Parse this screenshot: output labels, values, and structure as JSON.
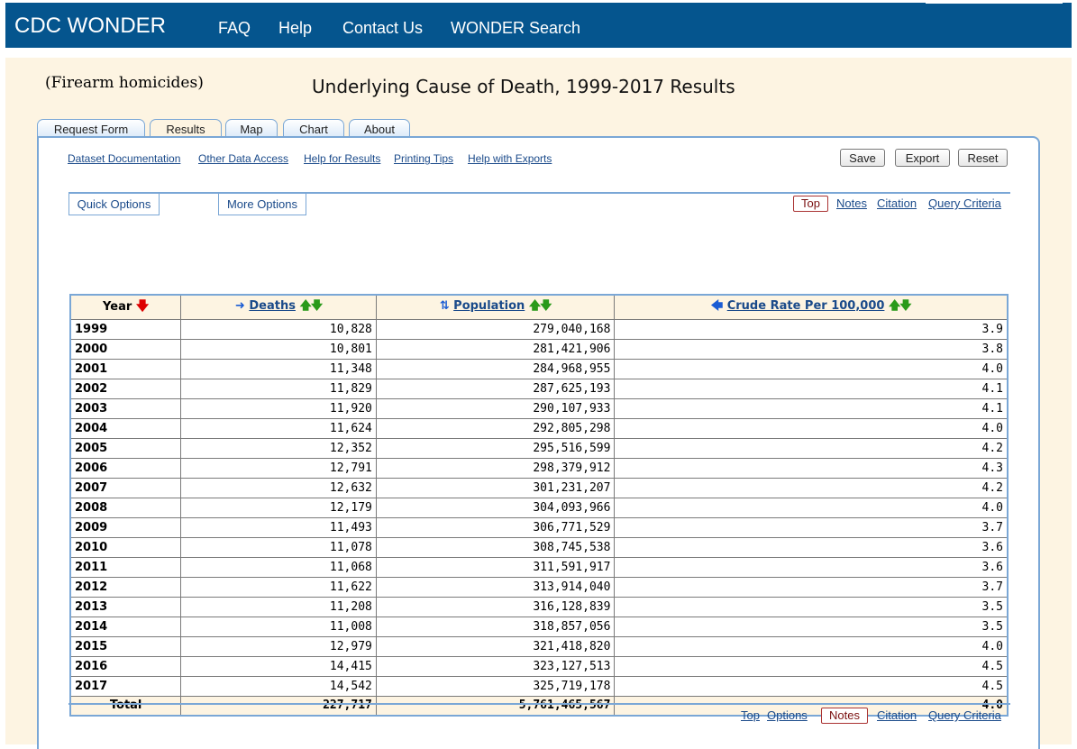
{
  "topnav": {
    "brand": "CDC WONDER",
    "items": [
      "FAQ",
      "Help",
      "Contact Us",
      "WONDER Search"
    ]
  },
  "header": {
    "subtitle": "(Firearm homicides)",
    "title": "Underlying Cause of Death, 1999-2017 Results"
  },
  "tabs": [
    "Request Form",
    "Results",
    "Map",
    "Chart",
    "About"
  ],
  "links": [
    "Dataset Documentation",
    "Other Data Access",
    "Help for Results",
    "Printing Tips",
    "Help with Exports"
  ],
  "buttons": {
    "save": "Save",
    "export": "Export",
    "reset": "Reset"
  },
  "options": {
    "quick": "Quick Options",
    "more": "More Options"
  },
  "toplinks": {
    "top": "Top",
    "notes": "Notes",
    "citation": "Citation",
    "query": "Query Criteria"
  },
  "bottomlinks": {
    "top": "Top",
    "options": "Options",
    "notes": "Notes",
    "citation": "Citation",
    "query": "Query Criteria"
  },
  "table": {
    "headers": {
      "year": "Year",
      "deaths": "Deaths",
      "population": "Population",
      "rate": "Crude Rate Per 100,000"
    },
    "rows": [
      [
        "1999",
        "10,828",
        "279,040,168",
        "3.9"
      ],
      [
        "2000",
        "10,801",
        "281,421,906",
        "3.8"
      ],
      [
        "2001",
        "11,348",
        "284,968,955",
        "4.0"
      ],
      [
        "2002",
        "11,829",
        "287,625,193",
        "4.1"
      ],
      [
        "2003",
        "11,920",
        "290,107,933",
        "4.1"
      ],
      [
        "2004",
        "11,624",
        "292,805,298",
        "4.0"
      ],
      [
        "2005",
        "12,352",
        "295,516,599",
        "4.2"
      ],
      [
        "2006",
        "12,791",
        "298,379,912",
        "4.3"
      ],
      [
        "2007",
        "12,632",
        "301,231,207",
        "4.2"
      ],
      [
        "2008",
        "12,179",
        "304,093,966",
        "4.0"
      ],
      [
        "2009",
        "11,493",
        "306,771,529",
        "3.7"
      ],
      [
        "2010",
        "11,078",
        "308,745,538",
        "3.6"
      ],
      [
        "2011",
        "11,068",
        "311,591,917",
        "3.6"
      ],
      [
        "2012",
        "11,622",
        "313,914,040",
        "3.7"
      ],
      [
        "2013",
        "11,208",
        "316,128,839",
        "3.5"
      ],
      [
        "2014",
        "11,008",
        "318,857,056",
        "3.5"
      ],
      [
        "2015",
        "12,979",
        "321,418,820",
        "4.0"
      ],
      [
        "2016",
        "14,415",
        "323,127,513",
        "4.5"
      ],
      [
        "2017",
        "14,542",
        "325,719,178",
        "4.5"
      ]
    ],
    "total": [
      "Total",
      "227,717",
      "5,761,465,567",
      "4.0"
    ]
  }
}
